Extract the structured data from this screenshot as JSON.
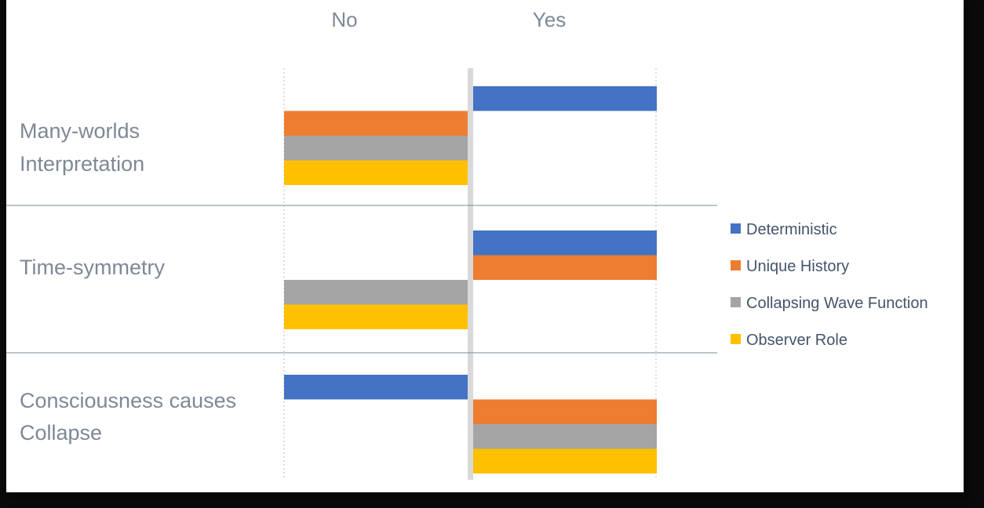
{
  "chart_data": {
    "type": "bar",
    "orientation": "horizontal",
    "columns": [
      "No",
      "Yes"
    ],
    "categories": [
      [
        "Many-worlds",
        "Interpretation"
      ],
      [
        "Time-symmetry"
      ],
      [
        "Consciousness causes",
        "Collapse"
      ]
    ],
    "series": [
      {
        "name": "Deterministic",
        "color": "#4472c4",
        "values": [
          "Yes",
          "Yes",
          "No"
        ]
      },
      {
        "name": "Unique History",
        "color": "#ed7d31",
        "values": [
          "No",
          "Yes",
          "Yes"
        ]
      },
      {
        "name": "Collapsing Wave Function",
        "color": "#a5a5a5",
        "values": [
          "No",
          "No",
          "Yes"
        ]
      },
      {
        "name": "Observer Role",
        "color": "#ffc000",
        "values": [
          "No",
          "No",
          "Yes"
        ]
      }
    ],
    "legend_position": "right",
    "grid": true
  }
}
